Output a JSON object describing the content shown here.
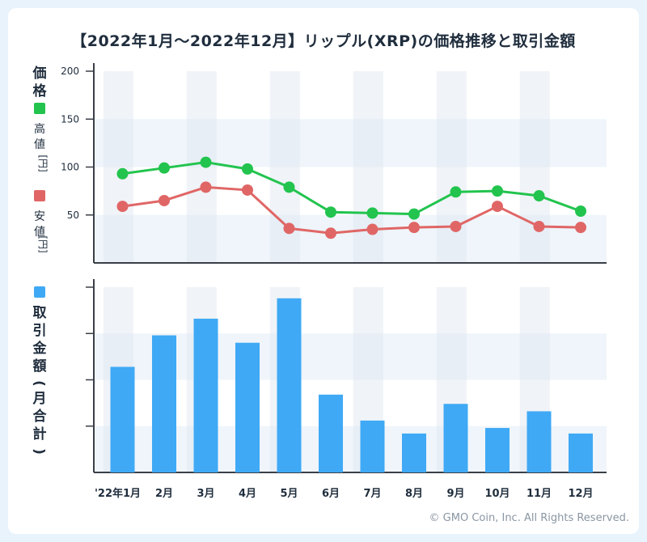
{
  "copyright": "© GMO Coin, Inc. All Rights Reserved.",
  "chart_data": {
    "title": "【2022年1月〜2022年12月】リップル(XRP)の価格推移と取引金額",
    "type": "line+bar",
    "categories": [
      "'22年1月",
      "2月",
      "3月",
      "4月",
      "5月",
      "6月",
      "7月",
      "8月",
      "9月",
      "10月",
      "11月",
      "12月"
    ],
    "price_panel": {
      "axis_title": "価格",
      "ylim": [
        0,
        200
      ],
      "yticks": [
        50,
        100,
        150,
        200
      ],
      "series": [
        {
          "name": "高値",
          "unit": "[円]",
          "color": "#22c44e",
          "values": [
            93,
            99,
            105,
            98,
            79,
            53,
            52,
            51,
            74,
            75,
            70,
            54
          ]
        },
        {
          "name": "安値",
          "unit": "[円]",
          "color": "#e06666",
          "values": [
            59,
            65,
            79,
            76,
            36,
            31,
            35,
            37,
            38,
            59,
            38,
            37
          ]
        }
      ]
    },
    "volume_panel": {
      "axis_title": "取引金額(月合計)",
      "color": "#3fa9f5",
      "ylim": [
        0,
        100
      ],
      "values": [
        57,
        74,
        83,
        70,
        94,
        42,
        28,
        21,
        37,
        24,
        33,
        21
      ]
    }
  }
}
